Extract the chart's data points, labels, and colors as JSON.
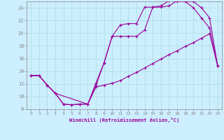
{
  "xlabel": "Windchill (Refroidissement éolien,°C)",
  "bg_color": "#cceeff",
  "line_color": "#990099",
  "grid_color": "#aadddd",
  "xlim": [
    -0.5,
    23.5
  ],
  "ylim": [
    8,
    25
  ],
  "xticks": [
    0,
    1,
    2,
    3,
    4,
    5,
    6,
    7,
    8,
    9,
    10,
    11,
    12,
    13,
    14,
    15,
    16,
    17,
    18,
    19,
    20,
    21,
    22,
    23
  ],
  "yticks": [
    8,
    10,
    12,
    14,
    16,
    18,
    20,
    22,
    24
  ],
  "curve1_x": [
    0,
    1,
    2,
    3,
    4,
    5,
    6,
    7,
    8,
    9,
    10,
    11,
    12,
    13,
    14,
    15,
    16,
    17,
    18,
    19,
    20,
    21,
    22,
    23
  ],
  "curve1_y": [
    13.3,
    13.3,
    11.8,
    10.5,
    8.8,
    8.7,
    8.8,
    8.8,
    12.1,
    15.3,
    19.5,
    21.3,
    21.5,
    21.5,
    24.1,
    24.1,
    24.3,
    25.1,
    25.0,
    25.0,
    24.0,
    22.4,
    20.8,
    14.8
  ],
  "curve2_x": [
    0,
    1,
    2,
    3,
    7,
    8,
    9,
    10,
    11,
    12,
    13,
    14,
    15,
    16,
    17,
    18,
    19,
    20,
    21,
    22,
    23
  ],
  "curve2_y": [
    13.3,
    13.3,
    11.8,
    10.5,
    8.8,
    11.7,
    15.3,
    19.5,
    19.5,
    19.5,
    19.5,
    20.5,
    24.1,
    24.1,
    24.3,
    25.1,
    25.0,
    25.0,
    24.0,
    22.4,
    14.8
  ],
  "curve3_x": [
    0,
    1,
    2,
    3,
    4,
    5,
    6,
    7,
    8,
    9,
    10,
    11,
    12,
    13,
    14,
    15,
    16,
    17,
    18,
    19,
    20,
    21,
    22,
    23
  ],
  "curve3_y": [
    13.3,
    13.3,
    11.8,
    10.5,
    8.8,
    8.7,
    8.8,
    8.8,
    11.5,
    11.8,
    12.1,
    12.5,
    13.2,
    13.8,
    14.5,
    15.2,
    15.9,
    16.6,
    17.2,
    17.9,
    18.5,
    19.2,
    19.9,
    14.8
  ]
}
